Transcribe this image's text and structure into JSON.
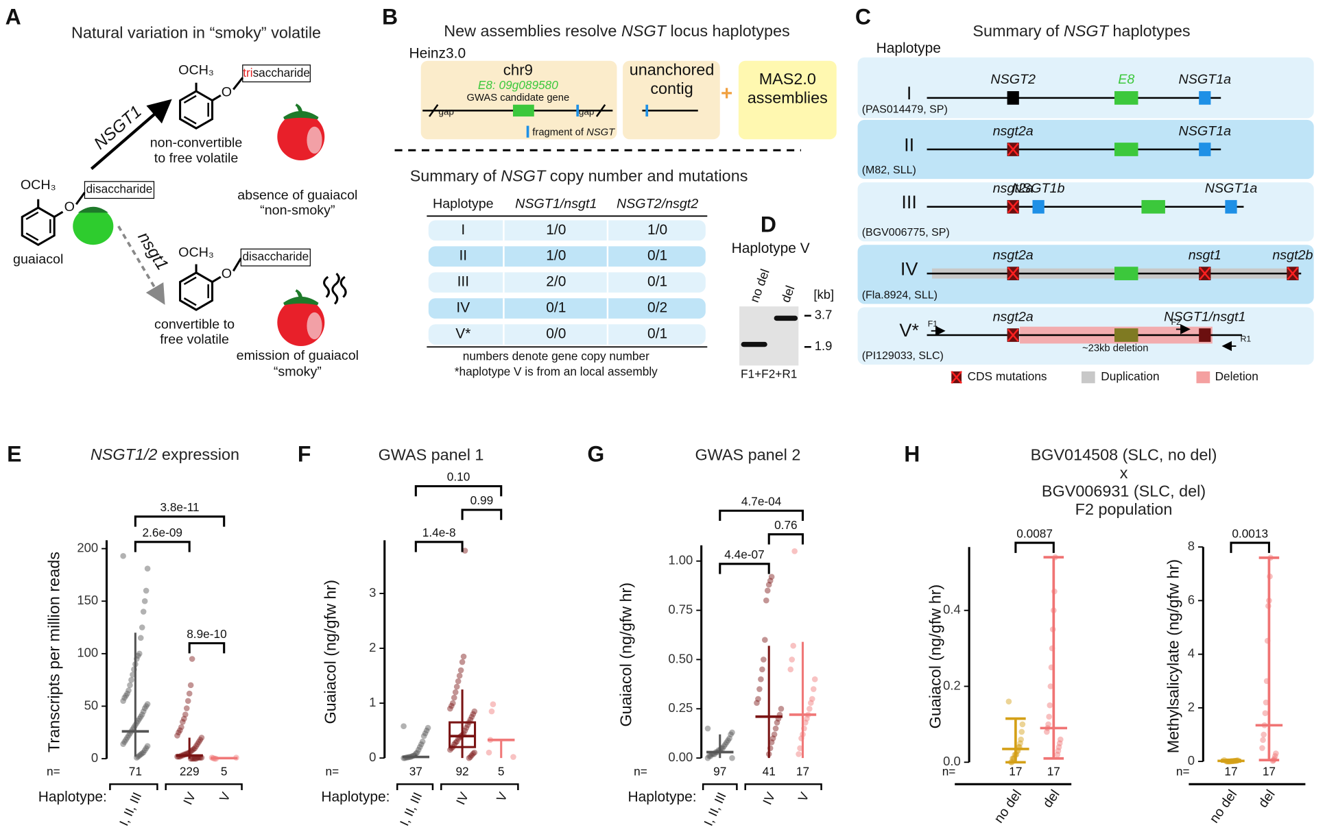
{
  "figure": {
    "A": {
      "letter": "A",
      "title": "Natural variation in “smoky” volatile",
      "methoxy": "OCH₃",
      "oxygen": "O",
      "trisaccharide": [
        "tri",
        "saccharide"
      ],
      "disaccharide": "disaccharide",
      "enzyme": "NSGT1",
      "mutant": "nsgt1",
      "substrate": "guaiacol",
      "top_product": [
        "non-convertible",
        "to free volatile"
      ],
      "top_phenotype": [
        "absence of guaiacol",
        "“non-smoky”"
      ],
      "bottom_product": [
        "convertible to",
        "free volatile"
      ],
      "bottom_phenotype": [
        "emission of guaiacol",
        "“smoky”"
      ]
    },
    "B": {
      "letter": "B",
      "title": [
        "New assemblies resolve ",
        "NSGT",
        " locus haplotypes"
      ],
      "reference": "Heinz3.0",
      "chromosome": "chr9",
      "candidate": "E8: 09g089580",
      "candidate_note": "GWAS candidate gene",
      "gap": "gap",
      "fragment": [
        "fragment of ",
        "NSGT"
      ],
      "contig": [
        "unanchored",
        "contig"
      ],
      "plus": "+",
      "assemblies": [
        "MAS2.0",
        "assemblies"
      ],
      "table_title": [
        "Summary of ",
        "NSGT",
        " copy number and mutations"
      ],
      "table": {
        "header": [
          "Haplotype",
          "NSGT1/nsgt1",
          "NSGT2/nsgt2"
        ],
        "rows": [
          [
            "I",
            "1/0",
            "1/0"
          ],
          [
            "II",
            "1/0",
            "0/1"
          ],
          [
            "III",
            "2/0",
            "0/1"
          ],
          [
            "IV",
            "0/1",
            "0/2"
          ],
          [
            "V*",
            "0/0",
            "0/1"
          ]
        ]
      },
      "notes": [
        "numbers denote gene copy number",
        "*haplotype V is from an local assembly"
      ]
    },
    "D": {
      "letter": "D",
      "title": "Haplotype V",
      "lanes": [
        "no del",
        "del"
      ],
      "unit": "[kb]",
      "markers": [
        3.7,
        1.9
      ],
      "primers": "F1+F2+R1"
    },
    "C": {
      "letter": "C",
      "title": [
        "Summary of ",
        "NSGT",
        " haplotypes"
      ],
      "column": "Haplotype",
      "rows": [
        {
          "name": "I",
          "accession": "(PAS014479, SP)",
          "genes": [
            {
              "label": "NSGT2",
              "color": "#000000"
            },
            {
              "label": "E8",
              "color": "#3cc83c"
            },
            {
              "label": "NSGT1a",
              "color": "#1e90e6"
            }
          ]
        },
        {
          "name": "II",
          "accession": "(M82, SLL)",
          "genes": [
            {
              "label": "nsgt2a",
              "color": "#6b0f0f",
              "mutated": true
            },
            {
              "label": null,
              "color": "#3cc83c"
            },
            {
              "label": "NSGT1a",
              "color": "#1e90e6"
            }
          ]
        },
        {
          "name": "III",
          "accession": "(BGV006775, SP)",
          "genes": [
            {
              "label": "nsgt2a",
              "color": "#6b0f0f",
              "mutated": true
            },
            {
              "label": "NSGT1b",
              "color": "#1e90e6"
            },
            {
              "label": null,
              "color": "#3cc83c"
            },
            {
              "label": "NSGT1a",
              "color": "#1e90e6"
            }
          ]
        },
        {
          "name": "IV",
          "accession": "(Fla.8924, SLL)",
          "duplication": true,
          "genes": [
            {
              "label": "nsgt2a",
              "color": "#6b0f0f",
              "mutated": true
            },
            {
              "label": null,
              "color": "#3cc83c"
            },
            {
              "label": "nsgt1",
              "color": "#6b0f0f",
              "mutated": true
            },
            {
              "label": "nsgt2b",
              "color": "#6b0f0f",
              "mutated": true
            }
          ]
        },
        {
          "name": "V*",
          "accession": "(PI129033, SLC)",
          "deletion": true,
          "genes": [
            {
              "label": "nsgt2a",
              "color": "#6b0f0f",
              "mutated": true
            },
            {
              "label": null,
              "color": "#7f7a22"
            },
            {
              "label": "NSGT1/nsgt1",
              "color": "#6b0f0f"
            }
          ]
        }
      ],
      "deletion": "~23kb deletion",
      "primers": [
        "F1",
        "F2",
        "R1"
      ],
      "legend": [
        "CDS mutations",
        "Duplication",
        "Deletion"
      ]
    }
  },
  "chart_data": [
    {
      "type": "strip",
      "letter": "E",
      "title": [
        "NSGT1/2",
        " expression"
      ],
      "y_label": "Transcripts per million reads",
      "ylim": [
        -5,
        208
      ],
      "yticks": [
        0,
        50,
        100,
        150,
        200
      ],
      "x_label": "Haplotype:",
      "n_label": "n=",
      "categories": [
        "I, II, III",
        "IV",
        "V"
      ],
      "n": [
        71,
        229,
        5
      ],
      "colors": [
        "#555555",
        "#7a1414",
        "#f07878"
      ],
      "points": [
        [
          193,
          181,
          160,
          150,
          140,
          125,
          115,
          100,
          98,
          95,
          90,
          85,
          80,
          75,
          70,
          65,
          62,
          60,
          58,
          55,
          52,
          50,
          48,
          45,
          42,
          40,
          38,
          36,
          34,
          32,
          30,
          28,
          26,
          24,
          22,
          20,
          18,
          16,
          14,
          12,
          10,
          8,
          6,
          5,
          4,
          3,
          2,
          1
        ],
        [
          95,
          70,
          62,
          55,
          48,
          42,
          38,
          35,
          30,
          27,
          25,
          22,
          20,
          18,
          16,
          14,
          12,
          10,
          9,
          8,
          7,
          6,
          5,
          5,
          4,
          4,
          3,
          3,
          2,
          2,
          2,
          1,
          1,
          1,
          1,
          0,
          0,
          0,
          0,
          0
        ],
        [
          0,
          0,
          0.5,
          1,
          1
        ]
      ],
      "median": [
        26,
        3,
        0.5
      ],
      "whisker_low": [
        2,
        0,
        0
      ],
      "whisker_high": [
        120,
        20,
        1
      ],
      "pvalues": [
        "3.8e-11",
        "2.6e-09",
        "8.9e-10"
      ]
    },
    {
      "type": "strip",
      "letter": "F",
      "title": "GWAS panel 1",
      "y_label": "Guaiacol (ng/gfw hr)",
      "ylim": [
        -0.1,
        3.97
      ],
      "yticks": [
        0,
        1,
        2,
        3
      ],
      "x_label": "Haplotype:",
      "n_label": "n=",
      "categories": [
        "I, II, III",
        "IV",
        "V"
      ],
      "n": [
        37,
        92,
        5
      ],
      "colors": [
        "#555555",
        "#7a1414",
        "#f07878"
      ],
      "points": [
        [
          0.58,
          0.55,
          0.5,
          0.45,
          0.4,
          0.3,
          0.25,
          0.2,
          0.15,
          0.1,
          0.08,
          0.05,
          0.04,
          0.03,
          0.02,
          0.02,
          0.01,
          0.01,
          0,
          0
        ],
        [
          3.78,
          1.85,
          1.75,
          1.6,
          1.5,
          1.4,
          1.3,
          1.2,
          1.1,
          1.0,
          0.95,
          0.9,
          0.85,
          0.8,
          0.75,
          0.7,
          0.65,
          0.6,
          0.55,
          0.5,
          0.45,
          0.42,
          0.4,
          0.38,
          0.35,
          0.3,
          0.28,
          0.25,
          0.2,
          0.18,
          0.15,
          0.1,
          0.08,
          0.05,
          0.02,
          0
        ],
        [
          0.98,
          0.85,
          0.33,
          0.1,
          0.02
        ]
      ],
      "median": [
        0.02,
        0.4,
        0.33
      ],
      "q1": [
        null,
        0.2,
        null
      ],
      "q3": [
        null,
        0.65,
        null
      ],
      "whisker_low": [
        0,
        0,
        0
      ],
      "whisker_high": [
        0.06,
        1.25,
        0.33
      ],
      "pvalues": [
        "0.10",
        "0.99",
        "1.4e-8"
      ]
    },
    {
      "type": "strip",
      "letter": "G",
      "title": "GWAS panel 2",
      "y_label": "Guaiacol (ng/gfw hr)",
      "ylim": [
        -0.03,
        1.08
      ],
      "yticks": [
        {
          "value": 0,
          "label": "0.00"
        },
        0.25,
        {
          "value": 0.5,
          "label": "0.50"
        },
        0.75,
        {
          "value": 1,
          "label": "1.00"
        }
      ],
      "x_label": "Haplotype:",
      "n_label": "n=",
      "categories": [
        "I, II, III",
        "IV",
        "V"
      ],
      "n": [
        97,
        41,
        17
      ],
      "colors": [
        "#555555",
        "#7a1414",
        "#f07878"
      ],
      "points": [
        [
          0.15,
          0.13,
          0.12,
          0.1,
          0.09,
          0.08,
          0.07,
          0.06,
          0.05,
          0.05,
          0.04,
          0.04,
          0.03,
          0.03,
          0.02,
          0.02,
          0.02,
          0.01,
          0.01,
          0,
          0
        ],
        [
          0.92,
          0.9,
          0.88,
          0.85,
          0.8,
          0.6,
          0.5,
          0.45,
          0.4,
          0.35,
          0.3,
          0.28,
          0.25,
          0.22,
          0.2,
          0.18,
          0.15,
          0.12,
          0.1,
          0.08,
          0.05,
          0.02
        ],
        [
          1.05,
          0.57,
          0.5,
          0.45,
          0.4,
          0.35,
          0.3,
          0.28,
          0.25,
          0.22,
          0.2,
          0.18,
          0.15,
          0.12,
          0.1,
          0.05,
          0.02
        ]
      ],
      "median": [
        0.03,
        0.21,
        0.22
      ],
      "whisker_low": [
        0,
        0,
        0
      ],
      "whisker_high": [
        0.12,
        0.57,
        0.59
      ],
      "pvalues": [
        "4.7e-04",
        "0.76",
        "4.4e-07"
      ]
    },
    {
      "type": "errorbar",
      "letter": "H",
      "title_lines": [
        "BGV014508 (SLC, no del)",
        "x",
        "BGV006931 (SLC, del)",
        "F2 population"
      ],
      "y_label": "Guaiacol (ng/gfw hr)",
      "ylim": [
        -0.01,
        0.567
      ],
      "yticks": [
        {
          "value": 0,
          "label": "0.0"
        },
        0.2,
        0.4
      ],
      "n_label": "n=",
      "categories": [
        "no del",
        "del"
      ],
      "n": [
        17,
        17
      ],
      "colors": [
        "#d4a017",
        "#f07474"
      ],
      "points": [
        [
          0.16,
          0.1,
          0.08,
          0.06,
          0.05,
          0.04,
          0.04,
          0.03,
          0.03,
          0.02,
          0.02,
          0.02,
          0.01,
          0.01,
          0.01,
          0,
          0
        ],
        [
          0.54,
          0.45,
          0.4,
          0.35,
          0.3,
          0.25,
          0.2,
          0.15,
          0.12,
          0.1,
          0.09,
          0.08,
          0.06,
          0.05,
          0.04,
          0.03,
          0.02
        ]
      ],
      "median": [
        0.035,
        0.09
      ],
      "whisker_low": [
        0,
        0.01
      ],
      "whisker_high": [
        0.115,
        0.54
      ],
      "pvalues": [
        "0.0087"
      ]
    },
    {
      "type": "errorbar",
      "y_label": "Methylsalicylate (ng/gfw hr)",
      "ylim": [
        -0.15,
        8
      ],
      "yticks": [
        0,
        2,
        4,
        6,
        8
      ],
      "n_label": "n=",
      "categories": [
        "no del",
        "del"
      ],
      "n": [
        17,
        17
      ],
      "colors": [
        "#d4a017",
        "#f07474"
      ],
      "points": [
        [
          0.05,
          0.04,
          0.03,
          0.03,
          0.02,
          0.02,
          0.02,
          0.01,
          0.01,
          0.01,
          0.01,
          0,
          0,
          0,
          0,
          0,
          0
        ],
        [
          7.6,
          6.9,
          6.0,
          5.8,
          4.5,
          3.0,
          2.2,
          1.8,
          1.35,
          1.0,
          0.8,
          0.5,
          0.3,
          0.2,
          0.1,
          0.05,
          0.02
        ]
      ],
      "median": [
        0.02,
        1.35
      ],
      "whisker_low": [
        0,
        0.05
      ],
      "whisker_high": [
        0.05,
        7.6
      ],
      "pvalues": [
        "0.0013"
      ]
    }
  ]
}
